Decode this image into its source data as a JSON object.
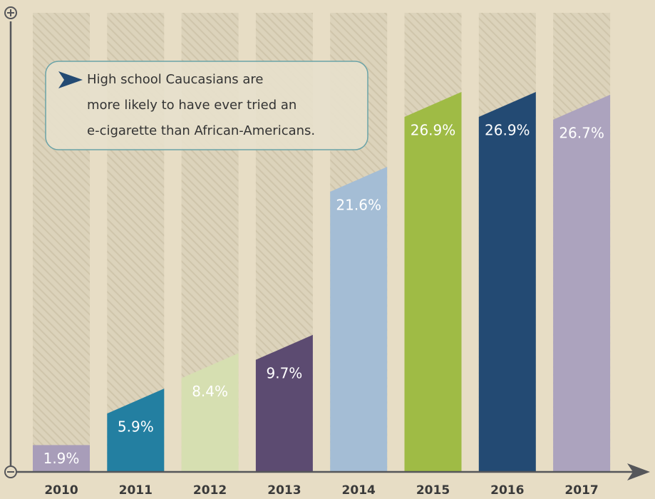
{
  "chart_data": {
    "type": "bar",
    "categories": [
      "2010",
      "2011",
      "2012",
      "2013",
      "2014",
      "2015",
      "2016",
      "2017"
    ],
    "values": [
      1.9,
      5.9,
      8.4,
      9.7,
      21.6,
      26.9,
      26.9,
      26.7
    ],
    "value_labels": [
      "1.9%",
      "5.9%",
      "8.4%",
      "9.7%",
      "21.6%",
      "26.9%",
      "26.9%",
      "26.7%"
    ],
    "colors": [
      "#a89db9",
      "#237fa1",
      "#d6dfb1",
      "#5c4b71",
      "#a4bdd5",
      "#9fbb45",
      "#234a73",
      "#aca3be"
    ],
    "ylim": [
      0,
      32.5
    ],
    "annotation": [
      "High school Caucasians are",
      "more likely to have ever tried an",
      "e-cigarette than African-Americans."
    ]
  }
}
